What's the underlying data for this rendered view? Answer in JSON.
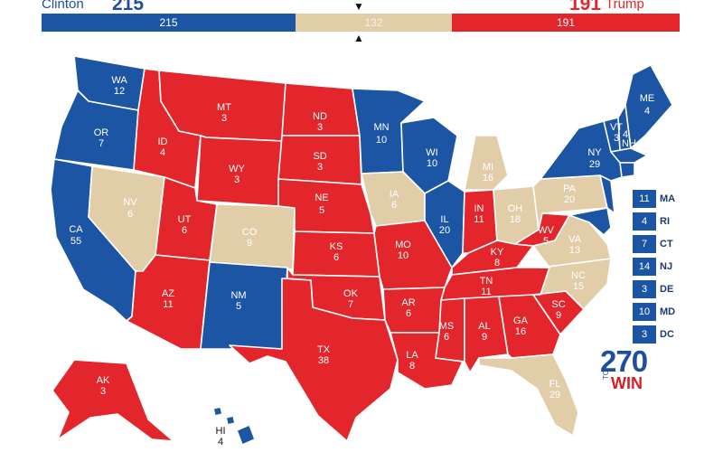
{
  "header": {
    "clinton_label": "Clinton",
    "clinton_total": "215",
    "trump_total": "191",
    "trump_label": "Trump",
    "bar": {
      "dem": "215",
      "tossup": "132",
      "rep": "191"
    },
    "marker_top": "▼",
    "marker_bottom": "▲"
  },
  "colors": {
    "dem": "#1c55a3",
    "rep": "#e3262c",
    "tossup": "#e2cda9"
  },
  "states": {
    "WA": {
      "abbr": "WA",
      "ev": "12"
    },
    "OR": {
      "abbr": "OR",
      "ev": "7"
    },
    "CA": {
      "abbr": "CA",
      "ev": "55"
    },
    "NV": {
      "abbr": "NV",
      "ev": "6"
    },
    "ID": {
      "abbr": "ID",
      "ev": "4"
    },
    "MT": {
      "abbr": "MT",
      "ev": "3"
    },
    "WY": {
      "abbr": "WY",
      "ev": "3"
    },
    "UT": {
      "abbr": "UT",
      "ev": "6"
    },
    "CO": {
      "abbr": "CO",
      "ev": "9"
    },
    "AZ": {
      "abbr": "AZ",
      "ev": "11"
    },
    "NM": {
      "abbr": "NM",
      "ev": "5"
    },
    "ND": {
      "abbr": "ND",
      "ev": "3"
    },
    "SD": {
      "abbr": "SD",
      "ev": "3"
    },
    "NE": {
      "abbr": "NE",
      "ev": "5"
    },
    "KS": {
      "abbr": "KS",
      "ev": "6"
    },
    "OK": {
      "abbr": "OK",
      "ev": "7"
    },
    "TX": {
      "abbr": "TX",
      "ev": "38"
    },
    "MN": {
      "abbr": "MN",
      "ev": "10"
    },
    "IA": {
      "abbr": "IA",
      "ev": "6"
    },
    "MO": {
      "abbr": "MO",
      "ev": "10"
    },
    "AR": {
      "abbr": "AR",
      "ev": "6"
    },
    "LA": {
      "abbr": "LA",
      "ev": "8"
    },
    "WI": {
      "abbr": "WI",
      "ev": "10"
    },
    "IL": {
      "abbr": "IL",
      "ev": "20"
    },
    "MI": {
      "abbr": "MI",
      "ev": "16"
    },
    "IN": {
      "abbr": "IN",
      "ev": "11"
    },
    "OH": {
      "abbr": "OH",
      "ev": "18"
    },
    "KY": {
      "abbr": "KY",
      "ev": "8"
    },
    "TN": {
      "abbr": "TN",
      "ev": "11"
    },
    "MS": {
      "abbr": "MS",
      "ev": "6"
    },
    "AL": {
      "abbr": "AL",
      "ev": "9"
    },
    "GA": {
      "abbr": "GA",
      "ev": "16"
    },
    "FL": {
      "abbr": "FL",
      "ev": "29"
    },
    "SC": {
      "abbr": "SC",
      "ev": "9"
    },
    "NC": {
      "abbr": "NC",
      "ev": "15"
    },
    "VA": {
      "abbr": "VA",
      "ev": "13"
    },
    "WV": {
      "abbr": "WV",
      "ev": "5"
    },
    "PA": {
      "abbr": "PA",
      "ev": "20"
    },
    "NY": {
      "abbr": "NY",
      "ev": "29"
    },
    "VT": {
      "abbr": "VT",
      "ev": "3"
    },
    "NH": {
      "abbr": "NH",
      "ev": "4"
    },
    "ME": {
      "abbr": "ME",
      "ev": "4"
    },
    "AK": {
      "abbr": "AK",
      "ev": "3"
    },
    "HI": {
      "abbr": "HI",
      "ev": "4"
    }
  },
  "small_states": [
    {
      "ev": "11",
      "abbr": "MA"
    },
    {
      "ev": "4",
      "abbr": "RI"
    },
    {
      "ev": "7",
      "abbr": "CT"
    },
    {
      "ev": "14",
      "abbr": "NJ"
    },
    {
      "ev": "3",
      "abbr": "DE"
    },
    {
      "ev": "10",
      "abbr": "MD"
    },
    {
      "ev": "3",
      "abbr": "DC"
    }
  ],
  "logo": {
    "number": "270",
    "to": "TO",
    "win": "WIN"
  }
}
